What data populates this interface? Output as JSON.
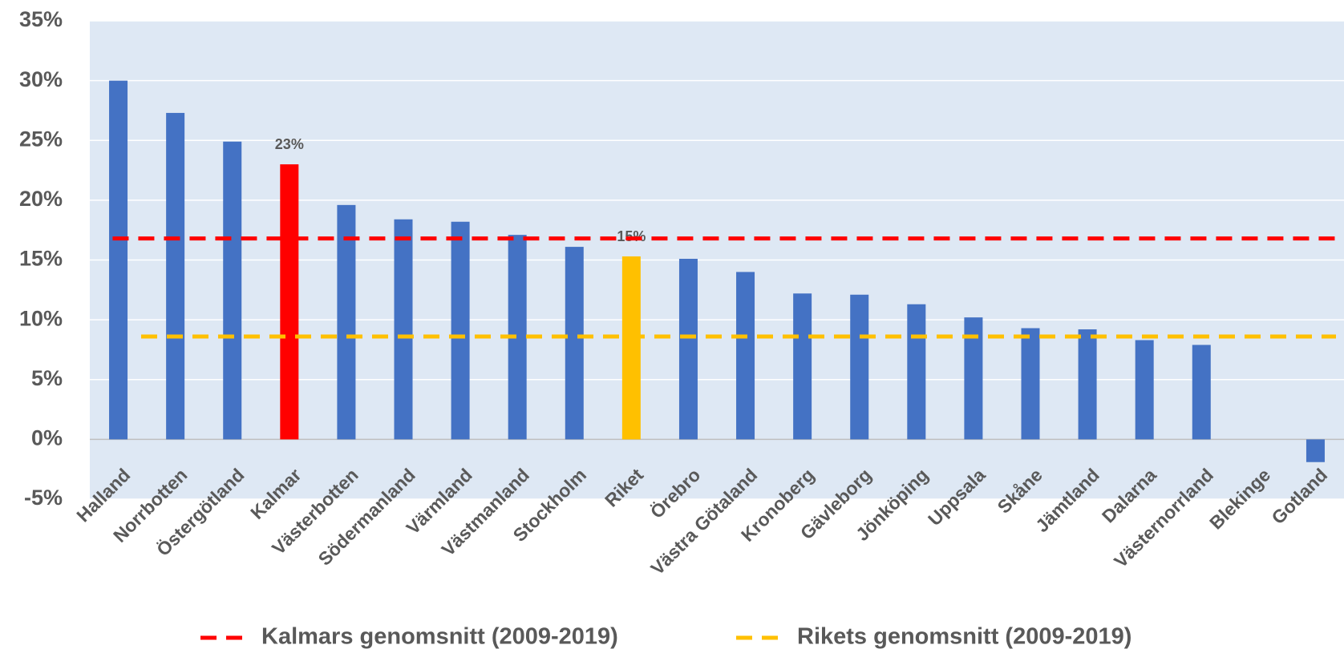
{
  "chart_data": {
    "type": "bar",
    "categories": [
      "Halland",
      "Norrbotten",
      "Östergötland",
      "Kalmar",
      "Västerbotten",
      "Södermanland",
      "Värmland",
      "Västmanland",
      "Stockholm",
      "Riket",
      "Örebro",
      "Västra Götaland",
      "Kronoberg",
      "Gävleborg",
      "Jönköping",
      "Uppsala",
      "Skåne",
      "Jämtland",
      "Dalarna",
      "Västernorrland",
      "Blekinge",
      "Gotland"
    ],
    "values": [
      30,
      27.3,
      24.9,
      23,
      19.6,
      18.4,
      18.2,
      17.1,
      16.1,
      15.3,
      15.1,
      14.0,
      12.2,
      12.1,
      11.3,
      10.2,
      9.3,
      9.2,
      8.3,
      7.9,
      0,
      -1.9
    ],
    "value_labels": [
      null,
      null,
      null,
      "23%",
      null,
      null,
      null,
      null,
      null,
      "15%",
      null,
      null,
      null,
      null,
      null,
      null,
      null,
      null,
      null,
      null,
      null,
      null
    ],
    "colors": [
      "#4472c4",
      "#4472c4",
      "#4472c4",
      "#ff0000",
      "#4472c4",
      "#4472c4",
      "#4472c4",
      "#4472c4",
      "#4472c4",
      "#ffc000",
      "#4472c4",
      "#4472c4",
      "#4472c4",
      "#4472c4",
      "#4472c4",
      "#4472c4",
      "#4472c4",
      "#4472c4",
      "#4472c4",
      "#4472c4",
      "#4472c4",
      "#4472c4"
    ],
    "reference_lines": [
      {
        "name": "Kalmars genomsnitt (2009-2019)",
        "color": "#ff0000",
        "value": 16.8
      },
      {
        "name": "Rikets genomsnitt (2009-2019)",
        "color": "#ffc000",
        "value": 8.6
      }
    ],
    "ylim": [
      -5,
      35
    ],
    "yticks": [
      {
        "value": -5,
        "label": "-5%"
      },
      {
        "value": 0,
        "label": "0%"
      },
      {
        "value": 5,
        "label": "5%"
      },
      {
        "value": 10,
        "label": "10%"
      },
      {
        "value": 15,
        "label": "15%"
      },
      {
        "value": 20,
        "label": "20%"
      },
      {
        "value": 25,
        "label": "25%"
      },
      {
        "value": 30,
        "label": "30%"
      },
      {
        "value": 35,
        "label": "35%"
      }
    ],
    "grid": true,
    "legend": "bottom"
  }
}
